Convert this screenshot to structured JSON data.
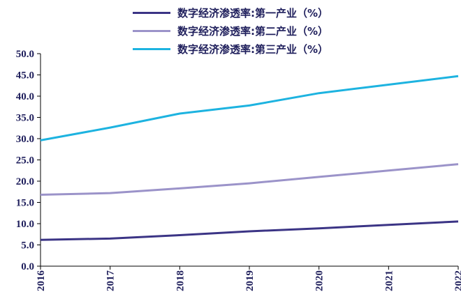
{
  "chart_data": {
    "type": "line",
    "x": [
      "2016",
      "2017",
      "2018",
      "2019",
      "2020",
      "2021",
      "2022"
    ],
    "series": [
      {
        "name": "数字经济渗透率:第一产业（%）",
        "color": "#3b3485",
        "values": [
          6.2,
          6.5,
          7.3,
          8.2,
          8.9,
          9.7,
          10.5
        ]
      },
      {
        "name": "数字经济渗透率:第二产业（%）",
        "color": "#9b93c9",
        "values": [
          16.8,
          17.2,
          18.3,
          19.5,
          21.0,
          22.5,
          24.0
        ]
      },
      {
        "name": "数字经济渗透率:第三产业（%）",
        "color": "#1db3e0",
        "values": [
          29.6,
          32.6,
          35.9,
          37.8,
          40.7,
          42.7,
          44.7
        ]
      }
    ],
    "ylim": [
      0,
      50
    ],
    "yticks": [
      "0.0",
      "5.0",
      "10.0",
      "15.0",
      "20.0",
      "25.0",
      "30.0",
      "35.0",
      "40.0",
      "45.0",
      "50.0"
    ],
    "grid": false,
    "legend": "top-center"
  }
}
